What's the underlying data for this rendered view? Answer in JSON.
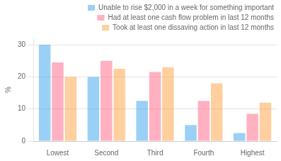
{
  "chart_data": {
    "type": "bar",
    "categories": [
      "Lowest",
      "Second",
      "Third",
      "Fourth",
      "Highest"
    ],
    "series": [
      {
        "name": "Unable to rise $2,000 in a week for something important",
        "values": [
          30,
          20,
          12.5,
          5,
          2.5
        ]
      },
      {
        "name": "Had at least one cash flow problem in last 12 months",
        "values": [
          24.5,
          25,
          21.5,
          12.5,
          8.5
        ]
      },
      {
        "name": "Took at least one dissaving action in last 12 months",
        "values": [
          20,
          22.5,
          23,
          18,
          12
        ]
      }
    ],
    "ylabel": "%",
    "ylim": [
      0,
      32
    ],
    "yticks": [
      0,
      10,
      20,
      30
    ],
    "grid": true,
    "legend": "top"
  }
}
